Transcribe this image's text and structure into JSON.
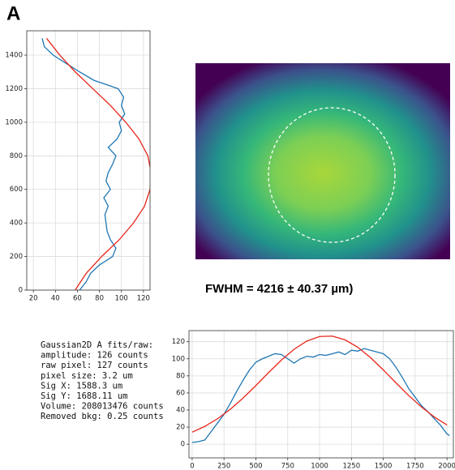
{
  "panel_label": "A",
  "fwhm": "FWHM = 4216 ± 40.37 µm)",
  "fit_stats": [
    "Gaussian2D A fits/raw:",
    "amplitude: 126 counts",
    "raw pixel: 127 counts",
    "pixel size: 3.2 um",
    "Sig X: 1588.3 um",
    "Sig Y: 1688.11 um",
    "Volume: 208013476 counts",
    "Removed bkg: 0.25 counts"
  ],
  "chart_data": [
    {
      "type": "line",
      "grid": true,
      "xlim": [
        14,
        126
      ],
      "ylim": [
        0,
        1545
      ],
      "xticks": [
        20,
        40,
        60,
        80,
        100,
        120
      ],
      "yticks": [
        0,
        200,
        400,
        600,
        800,
        1000,
        1200,
        1400
      ],
      "series": [
        {
          "color": "#1f77b4",
          "x": [
            62,
            68,
            72,
            80,
            92,
            95,
            90,
            87,
            86,
            85,
            88,
            84,
            90,
            86,
            88,
            92,
            95,
            88,
            96,
            100,
            98,
            103,
            100,
            102,
            97,
            75,
            62,
            50,
            38,
            30,
            28
          ],
          "values": [
            0,
            50,
            100,
            150,
            200,
            250,
            300,
            350,
            400,
            450,
            500,
            550,
            600,
            650,
            700,
            750,
            800,
            850,
            900,
            950,
            1000,
            1050,
            1100,
            1150,
            1200,
            1250,
            1300,
            1350,
            1400,
            1450,
            1500
          ]
        },
        {
          "color": "#e8261c",
          "x": [
            58,
            68,
            82,
            98,
            111,
            121,
            126,
            127,
            124,
            116,
            104,
            90,
            74,
            58,
            44,
            32
          ],
          "values": [
            0,
            100,
            200,
            300,
            400,
            500,
            600,
            700,
            800,
            900,
            1000,
            1100,
            1200,
            1300,
            1400,
            1500
          ]
        }
      ]
    },
    {
      "type": "line",
      "grid": true,
      "xlim": [
        -25,
        2050
      ],
      "ylim": [
        -16,
        133
      ],
      "xticks": [
        0,
        250,
        500,
        750,
        1000,
        1250,
        1500,
        1750,
        2000
      ],
      "yticks": [
        0,
        20,
        40,
        60,
        80,
        100,
        120
      ],
      "series": [
        {
          "color": "#1f77b4",
          "x": [
            0,
            50,
            100,
            150,
            200,
            250,
            300,
            350,
            400,
            450,
            500,
            550,
            600,
            650,
            700,
            750,
            800,
            850,
            900,
            950,
            1000,
            1050,
            1100,
            1150,
            1200,
            1250,
            1300,
            1350,
            1400,
            1450,
            1500,
            1550,
            1600,
            1650,
            1700,
            1750,
            1800,
            1850,
            1900,
            1950,
            2000,
            2020
          ],
          "values": [
            2,
            3,
            5,
            15,
            25,
            35,
            48,
            62,
            75,
            87,
            96,
            100,
            103,
            106,
            105,
            100,
            95,
            100,
            103,
            102,
            105,
            104,
            106,
            108,
            105,
            110,
            109,
            112,
            110,
            108,
            106,
            100,
            90,
            78,
            65,
            55,
            45,
            38,
            30,
            22,
            12,
            10
          ]
        },
        {
          "color": "#e8261c",
          "x": [
            0,
            100,
            200,
            300,
            400,
            500,
            600,
            700,
            800,
            900,
            1000,
            1100,
            1200,
            1300,
            1400,
            1500,
            1600,
            1700,
            1800,
            1900,
            2000
          ],
          "values": [
            14.1,
            20.9,
            29.9,
            41.0,
            54.1,
            68.7,
            83.9,
            98.5,
            111.2,
            120.8,
            126.1,
            126.6,
            122.2,
            113.5,
            101.3,
            87.0,
            71.8,
            56.9,
            43.5,
            31.9,
            22.5
          ]
        }
      ]
    }
  ]
}
